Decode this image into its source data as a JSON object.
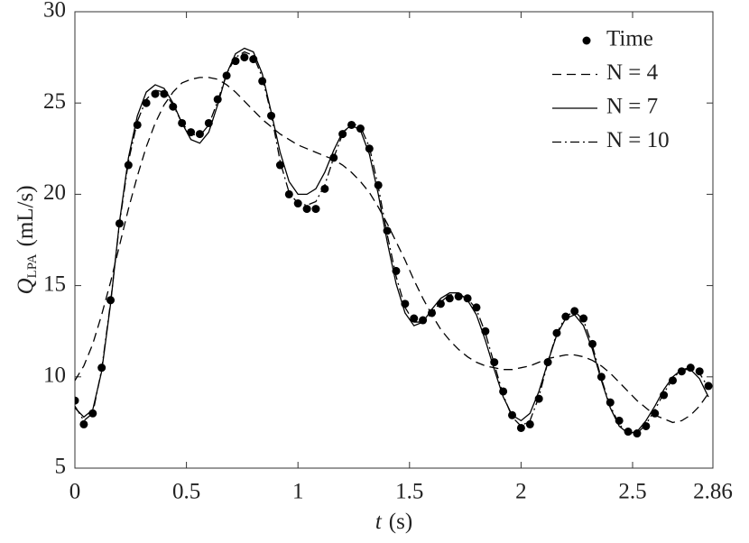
{
  "chart_data": {
    "type": "line",
    "xlabel": {
      "symbol": "t",
      "unit": "(s)"
    },
    "ylabel": {
      "symbol": "Q",
      "subscript": "LPA",
      "unit": "(mL/s)"
    },
    "xlim": [
      0,
      2.86
    ],
    "ylim": [
      5,
      30
    ],
    "xticks": [
      0,
      0.5,
      1,
      1.5,
      2,
      2.5,
      2.86
    ],
    "yticks": [
      5,
      10,
      15,
      20,
      25,
      30
    ],
    "legend": "top-right",
    "x": [
      0,
      0.04,
      0.08,
      0.12,
      0.16,
      0.2,
      0.24,
      0.28,
      0.32,
      0.36,
      0.4,
      0.44,
      0.48,
      0.52,
      0.56,
      0.6,
      0.64,
      0.68,
      0.72,
      0.76,
      0.8,
      0.84,
      0.88,
      0.92,
      0.96,
      1.0,
      1.04,
      1.08,
      1.12,
      1.16,
      1.2,
      1.24,
      1.28,
      1.32,
      1.36,
      1.4,
      1.44,
      1.48,
      1.52,
      1.56,
      1.6,
      1.64,
      1.68,
      1.72,
      1.76,
      1.8,
      1.84,
      1.88,
      1.92,
      1.96,
      2.0,
      2.04,
      2.08,
      2.12,
      2.16,
      2.2,
      2.24,
      2.28,
      2.32,
      2.36,
      2.4,
      2.44,
      2.48,
      2.52,
      2.56,
      2.6,
      2.64,
      2.68,
      2.72,
      2.76,
      2.8,
      2.84
    ],
    "series": [
      {
        "name": "Time",
        "type": "scatter",
        "color": "#000000",
        "values": [
          8.7,
          7.4,
          8.0,
          10.5,
          14.2,
          18.4,
          21.6,
          23.8,
          25.0,
          25.5,
          25.5,
          24.8,
          23.9,
          23.4,
          23.3,
          23.9,
          25.2,
          26.5,
          27.3,
          27.5,
          27.4,
          26.2,
          24.3,
          21.6,
          20.0,
          19.5,
          19.2,
          19.2,
          20.3,
          22.0,
          23.3,
          23.8,
          23.6,
          22.5,
          20.5,
          18.0,
          15.8,
          14.0,
          13.2,
          13.1,
          13.5,
          14.0,
          14.3,
          14.4,
          14.3,
          13.8,
          12.5,
          10.8,
          9.2,
          7.9,
          7.2,
          7.4,
          8.8,
          10.8,
          12.4,
          13.3,
          13.6,
          13.2,
          11.8,
          10.0,
          8.6,
          7.6,
          7.0,
          6.9,
          7.3,
          8.0,
          9.0,
          9.8,
          10.3,
          10.5,
          10.3,
          9.5
        ]
      },
      {
        "name": "N = 4",
        "type": "line",
        "linestyle": "dashed",
        "color": "#000000",
        "values": [
          9.8,
          10.6,
          11.8,
          13.4,
          15.2,
          17.2,
          19.2,
          21.0,
          22.6,
          23.9,
          24.9,
          25.6,
          26.1,
          26.3,
          26.4,
          26.4,
          26.3,
          26.0,
          25.6,
          25.1,
          24.6,
          24.1,
          23.7,
          23.3,
          23.0,
          22.7,
          22.5,
          22.3,
          22.1,
          21.9,
          21.6,
          21.2,
          20.7,
          20.1,
          19.3,
          18.4,
          17.4,
          16.4,
          15.3,
          14.3,
          13.4,
          12.6,
          12.0,
          11.5,
          11.1,
          10.8,
          10.6,
          10.5,
          10.4,
          10.4,
          10.5,
          10.6,
          10.8,
          11.0,
          11.1,
          11.2,
          11.2,
          11.1,
          10.9,
          10.6,
          10.2,
          9.7,
          9.2,
          8.7,
          8.3,
          7.9,
          7.7,
          7.5,
          7.6,
          7.9,
          8.4,
          9.1
        ]
      },
      {
        "name": "N = 7",
        "type": "line",
        "linestyle": "solid",
        "color": "#000000",
        "values": [
          8.3,
          7.8,
          8.2,
          10.3,
          14.0,
          18.5,
          22.0,
          24.3,
          25.6,
          26.0,
          25.8,
          25.0,
          23.9,
          23.0,
          22.8,
          23.4,
          24.9,
          26.6,
          27.7,
          28.0,
          27.8,
          26.6,
          24.5,
          22.3,
          20.7,
          20.0,
          20.0,
          20.3,
          21.2,
          22.4,
          23.4,
          23.8,
          23.5,
          22.2,
          20.0,
          17.4,
          15.1,
          13.5,
          12.8,
          13.0,
          13.7,
          14.3,
          14.6,
          14.6,
          14.2,
          13.4,
          12.0,
          10.4,
          8.9,
          7.9,
          7.6,
          8.0,
          9.2,
          10.8,
          12.3,
          13.2,
          13.4,
          12.8,
          11.5,
          9.8,
          8.3,
          7.3,
          6.9,
          7.0,
          7.6,
          8.4,
          9.3,
          10.0,
          10.4,
          10.4,
          9.9,
          8.9
        ]
      },
      {
        "name": "N = 10",
        "type": "line",
        "linestyle": "dashdot",
        "color": "#000000",
        "values": [
          8.4,
          7.6,
          8.0,
          10.4,
          14.1,
          18.4,
          21.8,
          24.0,
          25.2,
          25.7,
          25.6,
          24.9,
          23.9,
          23.3,
          23.2,
          23.8,
          25.1,
          26.6,
          27.5,
          27.8,
          27.6,
          26.4,
          24.4,
          21.8,
          20.1,
          19.5,
          19.4,
          19.6,
          20.5,
          22.0,
          23.3,
          23.9,
          23.7,
          22.6,
          20.4,
          17.8,
          15.5,
          13.8,
          13.0,
          13.0,
          13.5,
          14.1,
          14.5,
          14.5,
          14.3,
          13.7,
          12.4,
          10.7,
          9.0,
          7.8,
          7.3,
          7.6,
          8.9,
          10.8,
          12.4,
          13.3,
          13.6,
          13.1,
          11.7,
          9.9,
          8.4,
          7.4,
          6.9,
          6.9,
          7.4,
          8.2,
          9.1,
          9.9,
          10.4,
          10.5,
          10.2,
          9.4
        ]
      }
    ]
  }
}
